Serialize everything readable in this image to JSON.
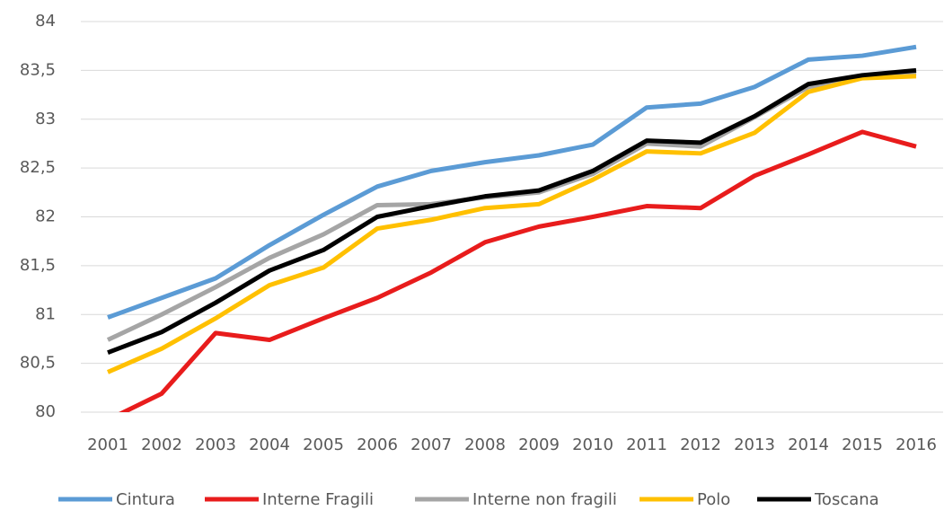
{
  "chart_data": {
    "type": "line",
    "categories": [
      "2001",
      "2002",
      "2003",
      "2004",
      "2005",
      "2006",
      "2007",
      "2008",
      "2009",
      "2010",
      "2011",
      "2012",
      "2013",
      "2014",
      "2015",
      "2016"
    ],
    "series": [
      {
        "name": "Cintura",
        "color": "#5b9bd5",
        "values": [
          80.97,
          81.17,
          81.37,
          81.71,
          82.02,
          82.31,
          82.47,
          82.56,
          82.63,
          82.74,
          83.12,
          83.16,
          83.33,
          83.61,
          83.65,
          83.74
        ]
      },
      {
        "name": "Interne Fragili",
        "color": "#e81c1c",
        "values": [
          79.92,
          80.19,
          80.81,
          80.74,
          80.96,
          81.17,
          81.43,
          81.74,
          81.9,
          82.0,
          82.11,
          82.09,
          82.42,
          82.64,
          82.87,
          82.72
        ]
      },
      {
        "name": "Interne non fragili",
        "color": "#a5a5a5",
        "values": [
          80.74,
          81.0,
          81.28,
          81.58,
          81.82,
          82.12,
          82.13,
          82.2,
          82.25,
          82.44,
          82.75,
          82.72,
          83.02,
          83.33,
          83.43,
          83.47
        ]
      },
      {
        "name": "Polo",
        "color": "#ffc000",
        "values": [
          80.41,
          80.65,
          80.96,
          81.3,
          81.48,
          81.88,
          81.97,
          82.09,
          82.13,
          82.38,
          82.67,
          82.65,
          82.86,
          83.28,
          83.42,
          83.44
        ]
      },
      {
        "name": "Toscana",
        "color": "#000000",
        "values": [
          80.61,
          80.82,
          81.12,
          81.45,
          81.66,
          82.0,
          82.11,
          82.21,
          82.27,
          82.47,
          82.78,
          82.76,
          83.03,
          83.36,
          83.45,
          83.5
        ]
      }
    ],
    "ylim": [
      80,
      84
    ],
    "yticks": [
      80,
      {
        "value": 80.5,
        "label": "80,5"
      },
      81,
      {
        "value": 81.5,
        "label": "81,5"
      },
      82,
      {
        "value": 82.5,
        "label": "82,5"
      },
      83,
      {
        "value": 83.5,
        "label": "83,5"
      },
      84
    ],
    "grid": true,
    "legend": "bottom"
  }
}
